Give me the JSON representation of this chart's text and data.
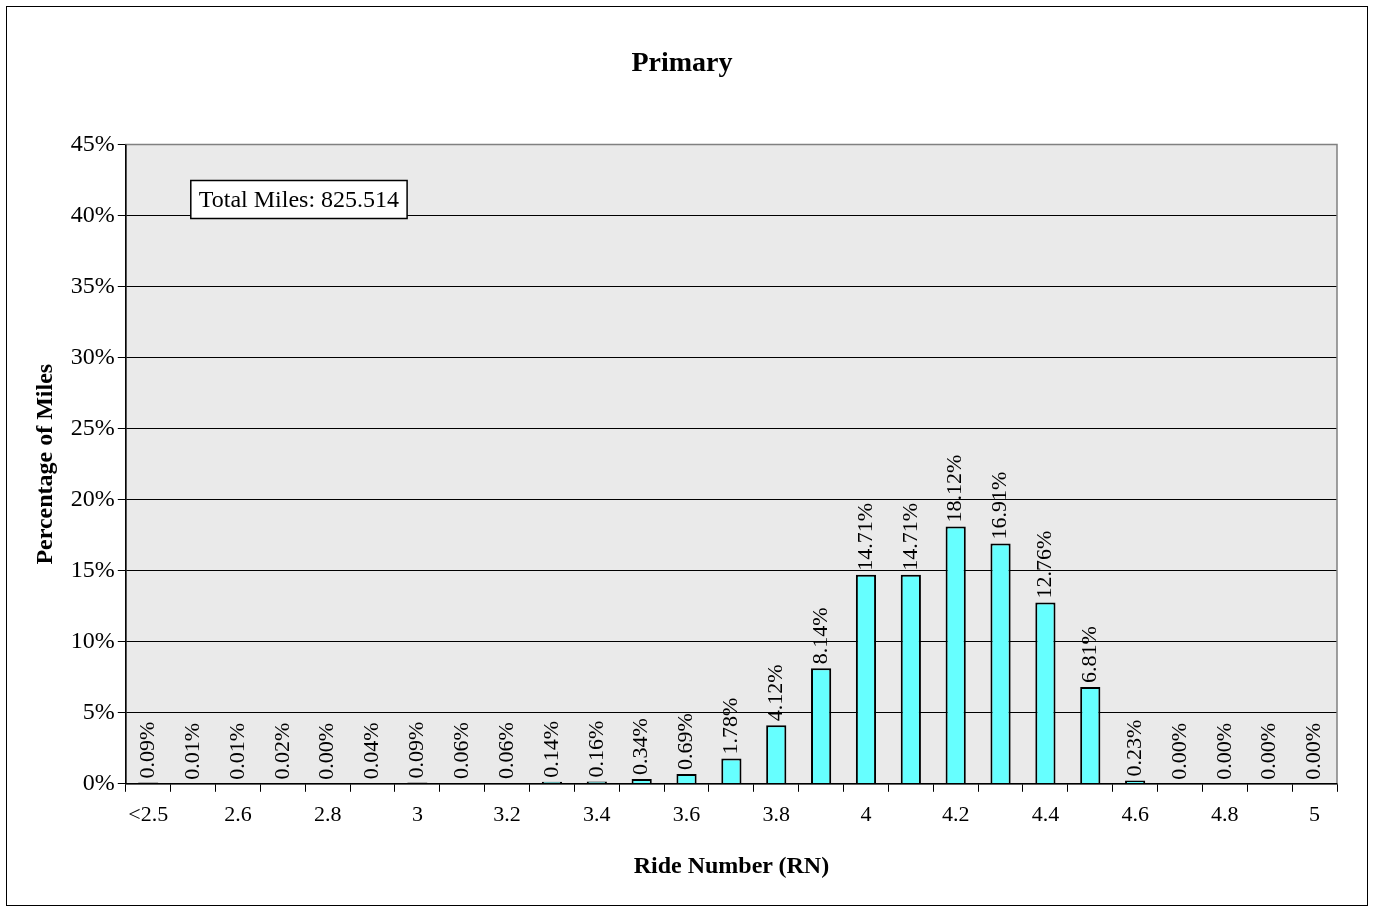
{
  "chart_data": {
    "type": "bar",
    "title": "Primary",
    "xlabel": "Ride Number (RN)",
    "ylabel": "Percentage of Miles",
    "categories": [
      "<2.5",
      null,
      "2.6",
      null,
      "2.8",
      null,
      "3",
      null,
      "3.2",
      null,
      "3.4",
      null,
      "3.6",
      null,
      "3.8",
      null,
      "4",
      null,
      "4.2",
      null,
      "4.4",
      null,
      "4.6",
      null,
      "4.8",
      null,
      "5"
    ],
    "values": [
      0.09,
      0.01,
      0.01,
      0.02,
      0.0,
      0.04,
      0.09,
      0.06,
      0.06,
      0.14,
      0.16,
      0.34,
      0.69,
      1.78,
      4.12,
      8.14,
      14.71,
      14.71,
      18.12,
      16.91,
      12.76,
      6.81,
      0.23,
      0.0,
      0.0,
      0.0,
      0.0
    ],
    "value_labels": [
      "0.09%",
      "0.01%",
      "0.01%",
      "0.02%",
      "0.00%",
      "0.04%",
      "0.09%",
      "0.06%",
      "0.06%",
      "0.14%",
      "0.16%",
      "0.34%",
      "0.69%",
      "1.78%",
      "4.12%",
      "8.14%",
      "14.71%",
      "14.71%",
      "18.12%",
      "16.91%",
      "12.76%",
      "6.81%",
      "0.23%",
      "0.00%",
      "0.00%",
      "0.00%",
      "0.00%"
    ],
    "color": "#66ffff",
    "ylim": [
      0,
      45
    ],
    "yticks": [
      {
        "value": 0,
        "label": "0%"
      },
      {
        "value": 5,
        "label": "5%"
      },
      {
        "value": 10,
        "label": "10%"
      },
      {
        "value": 15,
        "label": "15%"
      },
      {
        "value": 20,
        "label": "20%"
      },
      {
        "value": 25,
        "label": "25%"
      },
      {
        "value": 30,
        "label": "30%"
      },
      {
        "value": 35,
        "label": "35%"
      },
      {
        "value": 40,
        "label": "40%"
      },
      {
        "value": 45,
        "label": "45%"
      }
    ],
    "grid": "y",
    "legend": false,
    "annotations": [
      "Total Miles: 825.514"
    ]
  }
}
